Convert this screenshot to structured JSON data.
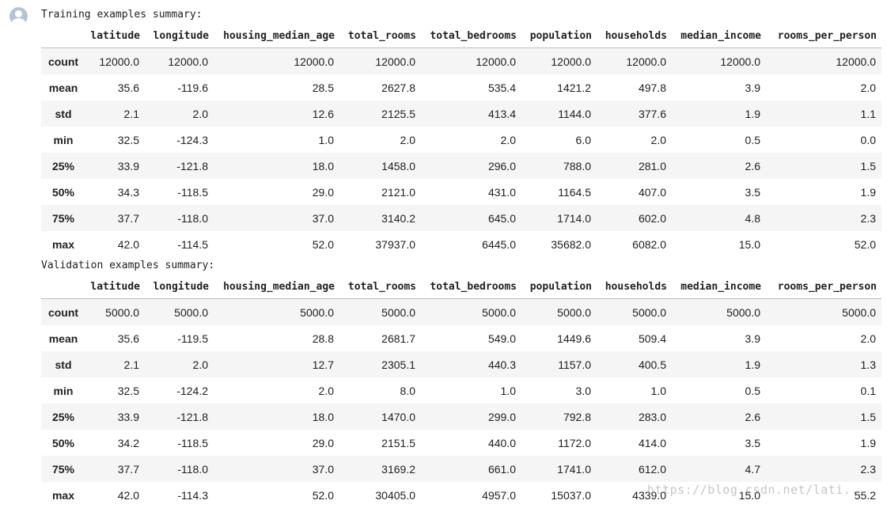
{
  "avatar": {
    "icon": "user-avatar-icon"
  },
  "columns": [
    "",
    "latitude",
    "longitude",
    "housing_median_age",
    "total_rooms",
    "total_bedrooms",
    "population",
    "households",
    "median_income",
    "rooms_per_person"
  ],
  "training": {
    "heading": "Training examples summary:",
    "rows": [
      {
        "label": "count",
        "values": [
          "12000.0",
          "12000.0",
          "12000.0",
          "12000.0",
          "12000.0",
          "12000.0",
          "12000.0",
          "12000.0",
          "12000.0"
        ]
      },
      {
        "label": "mean",
        "values": [
          "35.6",
          "-119.6",
          "28.5",
          "2627.8",
          "535.4",
          "1421.2",
          "497.8",
          "3.9",
          "2.0"
        ]
      },
      {
        "label": "std",
        "values": [
          "2.1",
          "2.0",
          "12.6",
          "2125.5",
          "413.4",
          "1144.0",
          "377.6",
          "1.9",
          "1.1"
        ]
      },
      {
        "label": "min",
        "values": [
          "32.5",
          "-124.3",
          "1.0",
          "2.0",
          "2.0",
          "6.0",
          "2.0",
          "0.5",
          "0.0"
        ]
      },
      {
        "label": "25%",
        "values": [
          "33.9",
          "-121.8",
          "18.0",
          "1458.0",
          "296.0",
          "788.0",
          "281.0",
          "2.6",
          "1.5"
        ]
      },
      {
        "label": "50%",
        "values": [
          "34.3",
          "-118.5",
          "29.0",
          "2121.0",
          "431.0",
          "1164.5",
          "407.0",
          "3.5",
          "1.9"
        ]
      },
      {
        "label": "75%",
        "values": [
          "37.7",
          "-118.0",
          "37.0",
          "3140.2",
          "645.0",
          "1714.0",
          "602.0",
          "4.8",
          "2.3"
        ]
      },
      {
        "label": "max",
        "values": [
          "42.0",
          "-114.5",
          "52.0",
          "37937.0",
          "6445.0",
          "35682.0",
          "6082.0",
          "15.0",
          "52.0"
        ]
      }
    ]
  },
  "validation": {
    "heading": "Validation examples summary:",
    "rows": [
      {
        "label": "count",
        "values": [
          "5000.0",
          "5000.0",
          "5000.0",
          "5000.0",
          "5000.0",
          "5000.0",
          "5000.0",
          "5000.0",
          "5000.0"
        ]
      },
      {
        "label": "mean",
        "values": [
          "35.6",
          "-119.5",
          "28.8",
          "2681.7",
          "549.0",
          "1449.6",
          "509.4",
          "3.9",
          "2.0"
        ]
      },
      {
        "label": "std",
        "values": [
          "2.1",
          "2.0",
          "12.7",
          "2305.1",
          "440.3",
          "1157.0",
          "400.5",
          "1.9",
          "1.3"
        ]
      },
      {
        "label": "min",
        "values": [
          "32.5",
          "-124.2",
          "2.0",
          "8.0",
          "1.0",
          "3.0",
          "1.0",
          "0.5",
          "0.1"
        ]
      },
      {
        "label": "25%",
        "values": [
          "33.9",
          "-121.8",
          "18.0",
          "1470.0",
          "299.0",
          "792.8",
          "283.0",
          "2.6",
          "1.5"
        ]
      },
      {
        "label": "50%",
        "values": [
          "34.2",
          "-118.5",
          "29.0",
          "2151.5",
          "440.0",
          "1172.0",
          "414.0",
          "3.5",
          "1.9"
        ]
      },
      {
        "label": "75%",
        "values": [
          "37.7",
          "-118.0",
          "37.0",
          "3169.2",
          "661.0",
          "1741.0",
          "612.0",
          "4.7",
          "2.3"
        ]
      },
      {
        "label": "max",
        "values": [
          "42.0",
          "-114.3",
          "52.0",
          "30405.0",
          "4957.0",
          "15037.0",
          "4339.0",
          "15.0",
          "55.2"
        ]
      }
    ]
  },
  "watermark": "https://blog.csdn.net/lati..."
}
